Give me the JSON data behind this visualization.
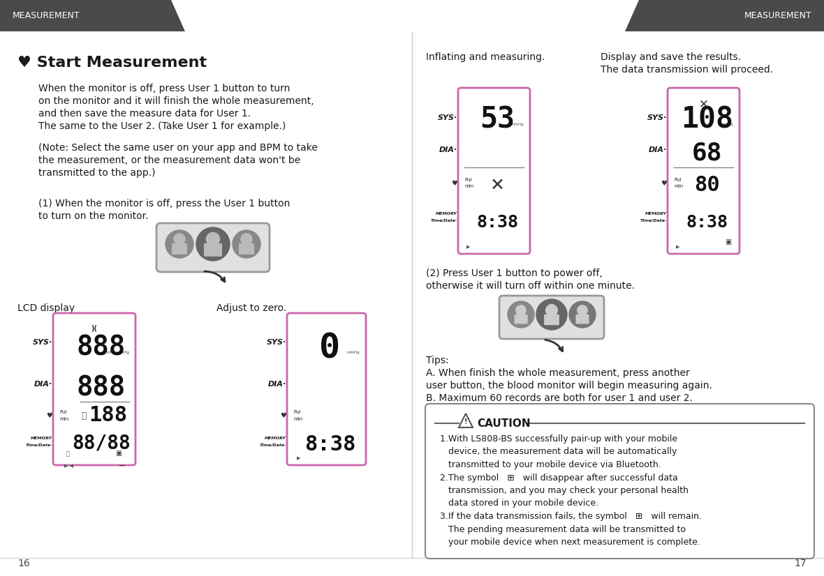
{
  "bg_color": "#ffffff",
  "header_color": "#4a4a4a",
  "header_text_color": "#ffffff",
  "header_text": "MEASUREMENT",
  "body_fontsize": 10,
  "page_num_left": "16",
  "page_num_right": "17",
  "divider_color": "#cccccc",
  "lcd_border_color": "#cc66aa",
  "text_color": "#1a1a1a",
  "dark_text": "#111111"
}
